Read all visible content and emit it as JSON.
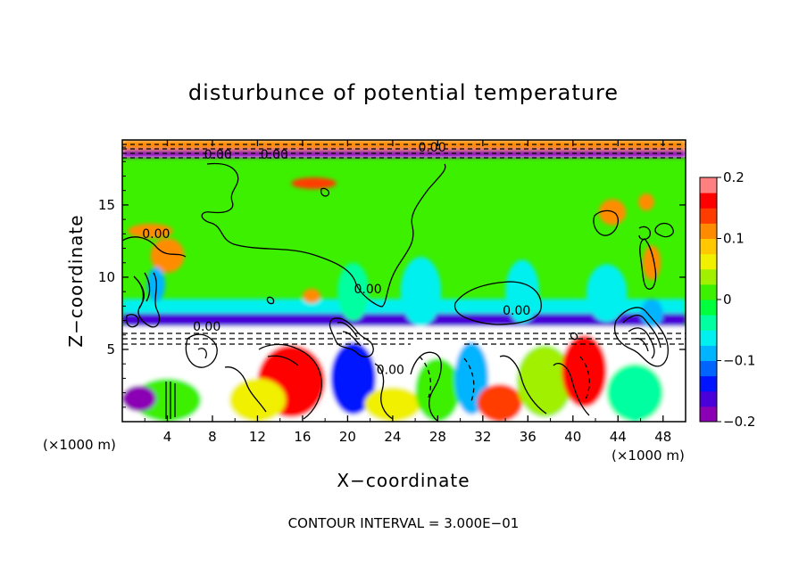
{
  "chart_data": {
    "type": "heatmap",
    "title": "disturbunce of potential temperature",
    "xlabel": "X−coordinate",
    "ylabel": "Z−coordinate",
    "x_unit": "(×1000 m)",
    "y_unit": "(×1000 m)",
    "xlim": [
      0,
      50
    ],
    "ylim": [
      0,
      19.5
    ],
    "x_ticks": [
      4,
      8,
      12,
      16,
      20,
      24,
      28,
      32,
      36,
      40,
      44,
      48
    ],
    "y_ticks": [
      5,
      10,
      15
    ],
    "colorbar": {
      "min": -0.2,
      "max": 0.2,
      "tick_values": [
        -0.2,
        -0.1,
        0,
        0.1,
        0.2
      ],
      "tick_labels": [
        "−0.2",
        "−0.1",
        "0",
        "0.1",
        "0.2"
      ],
      "colors": [
        "#8b00b4",
        "#4a00d8",
        "#0014ff",
        "#0064ff",
        "#00b4ff",
        "#00f0f0",
        "#00ffa0",
        "#00ff3c",
        "#3cf000",
        "#a0f000",
        "#f0f000",
        "#ffc800",
        "#ff8c00",
        "#ff3c00",
        "#ff0000",
        "#ff8080"
      ]
    },
    "contour_interval_text": "CONTOUR INTERVAL = 3.000E−01",
    "contour_labels": [
      {
        "text": "0.00",
        "x": 8.5,
        "y": 18.2
      },
      {
        "text": "0.00",
        "x": 13.5,
        "y": 18.2
      },
      {
        "text": "0.00",
        "x": 27.5,
        "y": 18.7
      },
      {
        "text": "0.00",
        "x": 3.0,
        "y": 12.7
      },
      {
        "text": "0.00",
        "x": 21.8,
        "y": 8.9
      },
      {
        "text": "0.00",
        "x": 35.0,
        "y": 7.4
      },
      {
        "text": "0.00",
        "x": 7.5,
        "y": 6.3
      },
      {
        "text": "0.00",
        "x": 23.8,
        "y": 3.3
      }
    ],
    "field_regions": [
      {
        "kind": "base",
        "x0": 0,
        "x1": 50,
        "y0": 6.6,
        "y1": 18.3,
        "value": 0.0
      },
      {
        "kind": "band",
        "x0": 0,
        "x1": 50,
        "y0": 18.3,
        "y1": 18.8,
        "value": -0.19
      },
      {
        "kind": "band",
        "x0": 0,
        "x1": 50,
        "y0": 18.8,
        "y1": 19.5,
        "value": 0.1
      },
      {
        "kind": "band",
        "x0": 0,
        "x1": 50,
        "y0": 6.6,
        "y1": 7.5,
        "value": -0.16
      },
      {
        "kind": "band",
        "x0": 0,
        "x1": 50,
        "y0": 7.5,
        "y1": 8.5,
        "value": -0.07
      },
      {
        "kind": "band",
        "x0": 0,
        "x1": 50,
        "y0": 0,
        "y1": 6.6,
        "value": 0.3
      },
      {
        "kind": "blob",
        "cx": 15,
        "cy": 2.8,
        "rx": 3,
        "ry": 2.5,
        "value": 0.17
      },
      {
        "kind": "blob",
        "cx": 4,
        "cy": 1.5,
        "rx": 3,
        "ry": 1.5,
        "value": 0.02
      },
      {
        "kind": "blob",
        "cx": 12,
        "cy": 1.5,
        "rx": 2.5,
        "ry": 1.5,
        "value": 0.05
      },
      {
        "kind": "blob",
        "cx": 20.5,
        "cy": 3.0,
        "rx": 2,
        "ry": 2.5,
        "value": -0.15
      },
      {
        "kind": "blob",
        "cx": 24,
        "cy": 1.2,
        "rx": 2.5,
        "ry": 1.2,
        "value": 0.06
      },
      {
        "kind": "blob",
        "cx": 28,
        "cy": 2.2,
        "rx": 2,
        "ry": 2.2,
        "value": 0.0
      },
      {
        "kind": "blob",
        "cx": 31,
        "cy": 3.0,
        "rx": 1.5,
        "ry": 2.5,
        "value": -0.1
      },
      {
        "kind": "blob",
        "cx": 33.5,
        "cy": 1.3,
        "rx": 2,
        "ry": 1.3,
        "value": 0.13
      },
      {
        "kind": "blob",
        "cx": 37.5,
        "cy": 2.8,
        "rx": 2.5,
        "ry": 2.5,
        "value": 0.03
      },
      {
        "kind": "blob",
        "cx": 41,
        "cy": 3.5,
        "rx": 2,
        "ry": 2.5,
        "value": 0.16
      },
      {
        "kind": "blob",
        "cx": 45.5,
        "cy": 2.0,
        "rx": 2.5,
        "ry": 2,
        "value": -0.05
      },
      {
        "kind": "blob",
        "cx": 1.5,
        "cy": 1.6,
        "rx": 1.5,
        "ry": 0.9,
        "value": -0.19
      },
      {
        "kind": "blob",
        "cx": 26.5,
        "cy": 9.0,
        "rx": 1.8,
        "ry": 2.4,
        "value": -0.06
      },
      {
        "kind": "blob",
        "cx": 35.5,
        "cy": 9.0,
        "rx": 1.5,
        "ry": 2.2,
        "value": -0.06
      },
      {
        "kind": "blob",
        "cx": 43,
        "cy": 8.9,
        "rx": 1.8,
        "ry": 2.0,
        "value": -0.06
      },
      {
        "kind": "blob",
        "cx": 20.5,
        "cy": 9.0,
        "rx": 1.4,
        "ry": 2.0,
        "value": -0.05
      },
      {
        "kind": "blob",
        "cx": 4,
        "cy": 11.5,
        "rx": 1.5,
        "ry": 1.2,
        "value": 0.12
      },
      {
        "kind": "blob",
        "cx": 2.5,
        "cy": 13.2,
        "rx": 2,
        "ry": 0.5,
        "value": 0.1
      },
      {
        "kind": "blob",
        "cx": 17,
        "cy": 16.5,
        "rx": 2,
        "ry": 0.4,
        "value": 0.14
      },
      {
        "kind": "blob",
        "cx": 43.5,
        "cy": 14.5,
        "rx": 1.2,
        "ry": 0.9,
        "value": 0.11
      },
      {
        "kind": "blob",
        "cx": 46.5,
        "cy": 15.2,
        "rx": 0.7,
        "ry": 0.6,
        "value": 0.11
      },
      {
        "kind": "blob",
        "cx": 47,
        "cy": 11.0,
        "rx": 0.8,
        "ry": 1.2,
        "value": 0.12
      },
      {
        "kind": "blob",
        "cx": 16.8,
        "cy": 8.7,
        "rx": 0.8,
        "ry": 0.5,
        "value": 0.1
      },
      {
        "kind": "blob",
        "cx": 3,
        "cy": 9.5,
        "rx": 0.8,
        "ry": 1.2,
        "value": -0.09
      },
      {
        "kind": "blob",
        "cx": 47,
        "cy": 7.5,
        "rx": 1,
        "ry": 1.0,
        "value": -0.09
      }
    ]
  }
}
